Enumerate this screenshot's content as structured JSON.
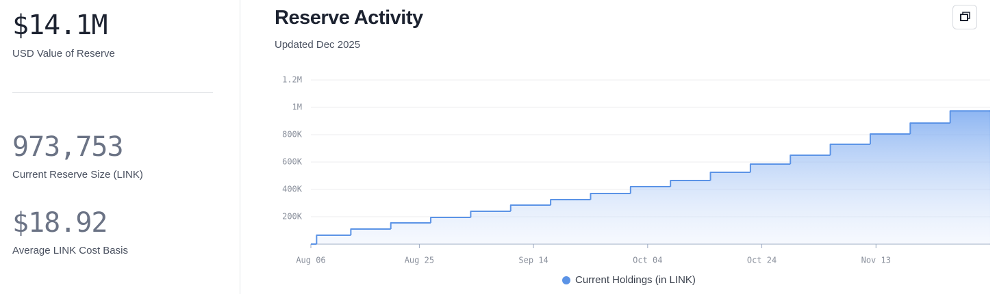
{
  "stats": [
    {
      "value": "$14.1M",
      "label": "USD Value of Reserve"
    },
    {
      "value": "973,753",
      "label": "Current Reserve Size (LINK)"
    },
    {
      "value": "$18.92",
      "label": "Average LINK Cost Basis"
    }
  ],
  "chart_data": {
    "type": "step",
    "title": "Reserve Activity",
    "subtitle": "Updated Dec 2025",
    "x": [
      "Aug 06",
      "Aug 07",
      "Aug 13",
      "Aug 20",
      "Aug 27",
      "Sep 03",
      "Sep 10",
      "Sep 17",
      "Sep 24",
      "Oct 01",
      "Oct 08",
      "Oct 15",
      "Oct 22",
      "Oct 29",
      "Nov 05",
      "Nov 12",
      "Nov 19",
      "Nov 26"
    ],
    "series": [
      {
        "name": "Current Holdings (in LINK)",
        "color": "#5b93e6",
        "values": [
          0,
          65000,
          110000,
          155000,
          195000,
          240000,
          285000,
          325000,
          370000,
          420000,
          465000,
          525000,
          585000,
          650000,
          730000,
          805000,
          885000,
          973753
        ]
      }
    ],
    "xlim": [
      "Aug 06",
      "Dec 03"
    ],
    "xticks": [
      "Aug 06",
      "Aug 25",
      "Sep 14",
      "Oct 04",
      "Oct 24",
      "Nov 13"
    ],
    "ylim": [
      0,
      1200000
    ],
    "yticks": [
      {
        "value": 200000,
        "label": "200K"
      },
      {
        "value": 400000,
        "label": "400K"
      },
      {
        "value": 600000,
        "label": "600K"
      },
      {
        "value": 800000,
        "label": "800K"
      },
      {
        "value": 1000000,
        "label": "1M"
      },
      {
        "value": 1200000,
        "label": "1.2M"
      }
    ],
    "grid": true
  }
}
